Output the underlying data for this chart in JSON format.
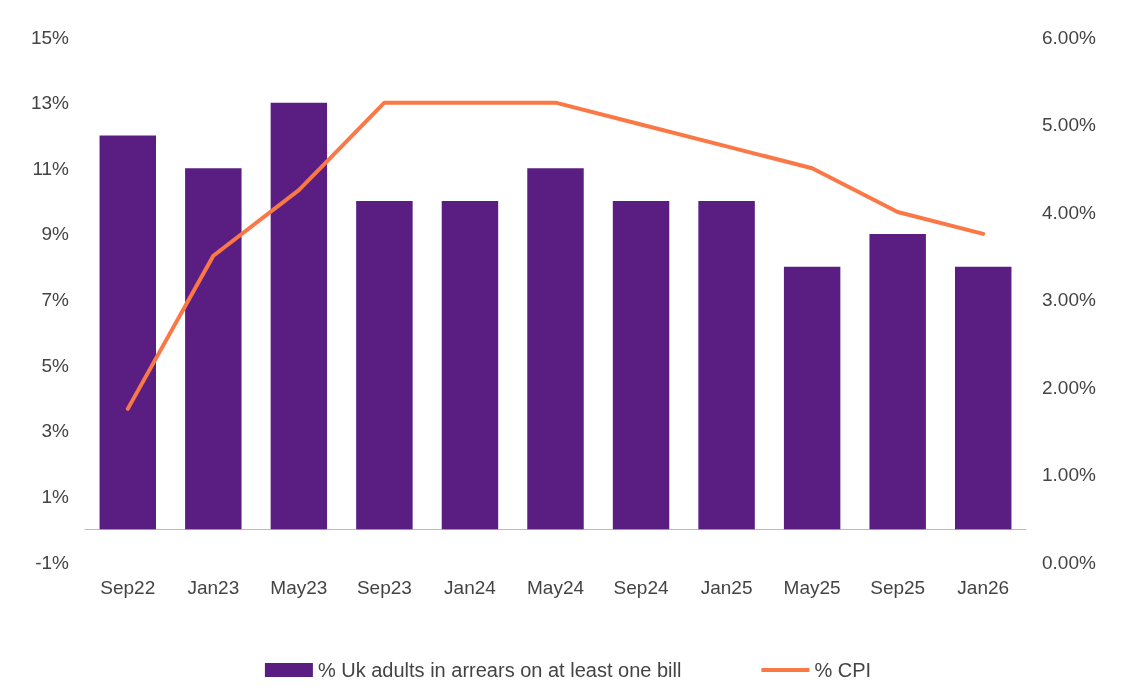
{
  "chart_data": {
    "type": "bar",
    "categories": [
      "Sep22",
      "Jan23",
      "May23",
      "Sep23",
      "Jan24",
      "May24",
      "Sep24",
      "Jan25",
      "May25",
      "Sep25",
      "Jan26"
    ],
    "series": [
      {
        "name": "% Uk adults in arrears on at least one bill",
        "color": "#5a1e82",
        "values": [
          12,
          11,
          13,
          10,
          10,
          11,
          10,
          10,
          8,
          9,
          8
        ]
      },
      {
        "name": "% CPI",
        "type": "line",
        "axis": "y2",
        "color": "#fa7846",
        "values": [
          1.75,
          3.5,
          4.25,
          5.25,
          5.25,
          5.25,
          5.0,
          4.75,
          4.5,
          4.0,
          3.75
        ]
      }
    ],
    "ylim": [
      -1,
      15
    ],
    "yticks": [
      {
        "value": -1,
        "label": "-1%"
      },
      {
        "value": 1,
        "label": "1%"
      },
      {
        "value": 3,
        "label": "3%"
      },
      {
        "value": 5,
        "label": "5%"
      },
      {
        "value": 7,
        "label": "7%"
      },
      {
        "value": 9,
        "label": "9%"
      },
      {
        "value": 11,
        "label": "11%"
      },
      {
        "value": 13,
        "label": "13%"
      },
      {
        "value": 15,
        "label": "15%"
      }
    ],
    "y2lim": [
      0,
      6
    ],
    "y2ticks": [
      {
        "value": 0,
        "label": "0.00%"
      },
      {
        "value": 1,
        "label": "1.00%"
      },
      {
        "value": 2,
        "label": "2.00%"
      },
      {
        "value": 3,
        "label": "3.00%"
      },
      {
        "value": 4,
        "label": "4.00%"
      },
      {
        "value": 5,
        "label": "5.00%"
      },
      {
        "value": 6,
        "label": "6.00%"
      }
    ],
    "grid": false,
    "legend": "bottom",
    "marker": "none",
    "line_style": "solid"
  }
}
